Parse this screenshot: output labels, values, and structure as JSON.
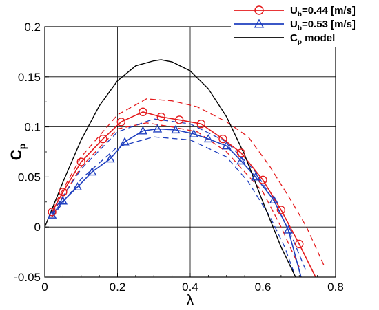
{
  "chart_data": {
    "type": "line",
    "title": "",
    "xlabel": "λ",
    "ylabel": {
      "main": "C",
      "sub": "p"
    },
    "xlim": [
      0,
      0.8
    ],
    "ylim": [
      -0.05,
      0.2
    ],
    "xticks": [
      "0",
      "0.2",
      "0.4",
      "0.6",
      "0.8"
    ],
    "yticks": [
      "-0.05",
      "0",
      "0.05",
      "0.1",
      "0.15",
      "0.2"
    ],
    "grid": true,
    "legend_position": "top-right",
    "colors": {
      "red": "#e41a1c",
      "blue": "#1f3fbf",
      "black": "#000000"
    },
    "series": [
      {
        "name": "U_b=0.44 [m/s]",
        "legend": {
          "pre": "U",
          "sub": "b",
          "post": "=0.44 [m/s]"
        },
        "color": "#e41a1c",
        "marker": "circle",
        "x": [
          0.02,
          0.05,
          0.1,
          0.16,
          0.21,
          0.27,
          0.32,
          0.37,
          0.43,
          0.49,
          0.54,
          0.6,
          0.65,
          0.7,
          0.745
        ],
        "y": [
          0.015,
          0.035,
          0.065,
          0.088,
          0.105,
          0.115,
          0.11,
          0.107,
          0.103,
          0.088,
          0.074,
          0.047,
          0.017,
          -0.017,
          -0.05
        ],
        "marker_x": [
          0.02,
          0.05,
          0.1,
          0.16,
          0.21,
          0.27,
          0.32,
          0.37,
          0.43,
          0.49,
          0.54,
          0.6,
          0.65,
          0.7
        ],
        "marker_y": [
          0.015,
          0.035,
          0.065,
          0.088,
          0.105,
          0.115,
          0.11,
          0.107,
          0.103,
          0.088,
          0.074,
          0.047,
          0.017,
          -0.017
        ],
        "band_upper": {
          "x": [
            0.02,
            0.1,
            0.2,
            0.28,
            0.35,
            0.42,
            0.5,
            0.56,
            0.62,
            0.68,
            0.72,
            0.77
          ],
          "y": [
            0.018,
            0.07,
            0.112,
            0.128,
            0.126,
            0.12,
            0.105,
            0.09,
            0.06,
            0.025,
            0.0,
            -0.04
          ]
        },
        "band_lower": {
          "x": [
            0.02,
            0.1,
            0.2,
            0.28,
            0.35,
            0.42,
            0.5,
            0.55,
            0.6,
            0.65,
            0.7
          ],
          "y": [
            0.013,
            0.06,
            0.098,
            0.104,
            0.1,
            0.095,
            0.075,
            0.055,
            0.035,
            0.0,
            -0.04
          ]
        }
      },
      {
        "name": "U_b=0.53 [m/s]",
        "legend": {
          "pre": "U",
          "sub": "b",
          "post": "=0.53 [m/s]"
        },
        "color": "#1f3fbf",
        "marker": "triangle",
        "x": [
          0.02,
          0.05,
          0.09,
          0.13,
          0.18,
          0.22,
          0.27,
          0.31,
          0.36,
          0.41,
          0.45,
          0.5,
          0.54,
          0.58,
          0.63,
          0.67,
          0.705
        ],
        "y": [
          0.012,
          0.026,
          0.04,
          0.055,
          0.068,
          0.085,
          0.096,
          0.098,
          0.097,
          0.093,
          0.088,
          0.081,
          0.066,
          0.05,
          0.027,
          -0.003,
          -0.05
        ],
        "marker_x": [
          0.02,
          0.05,
          0.09,
          0.13,
          0.18,
          0.22,
          0.27,
          0.31,
          0.36,
          0.41,
          0.45,
          0.5,
          0.54,
          0.58,
          0.63,
          0.67
        ],
        "marker_y": [
          0.012,
          0.026,
          0.04,
          0.055,
          0.068,
          0.085,
          0.096,
          0.098,
          0.097,
          0.093,
          0.088,
          0.081,
          0.066,
          0.05,
          0.027,
          -0.003
        ],
        "band_upper": {
          "x": [
            0.02,
            0.1,
            0.2,
            0.3,
            0.4,
            0.5,
            0.58,
            0.64,
            0.68,
            0.72
          ],
          "y": [
            0.014,
            0.058,
            0.095,
            0.108,
            0.103,
            0.085,
            0.055,
            0.02,
            -0.01,
            -0.045
          ]
        },
        "band_lower": {
          "x": [
            0.02,
            0.1,
            0.2,
            0.3,
            0.4,
            0.5,
            0.56,
            0.62,
            0.66,
            0.69
          ],
          "y": [
            0.01,
            0.048,
            0.08,
            0.09,
            0.087,
            0.07,
            0.045,
            0.01,
            -0.02,
            -0.05
          ]
        }
      },
      {
        "name": "C_p model",
        "legend": {
          "pre": "C",
          "sub": "p",
          "post": " model"
        },
        "color": "#000000",
        "marker": "none",
        "x": [
          0.0,
          0.05,
          0.1,
          0.15,
          0.2,
          0.25,
          0.3,
          0.32,
          0.35,
          0.4,
          0.45,
          0.5,
          0.55,
          0.6,
          0.65,
          0.69
        ],
        "y": [
          0.0,
          0.045,
          0.087,
          0.121,
          0.146,
          0.161,
          0.166,
          0.167,
          0.165,
          0.156,
          0.138,
          0.11,
          0.072,
          0.025,
          -0.02,
          -0.05
        ]
      }
    ]
  }
}
